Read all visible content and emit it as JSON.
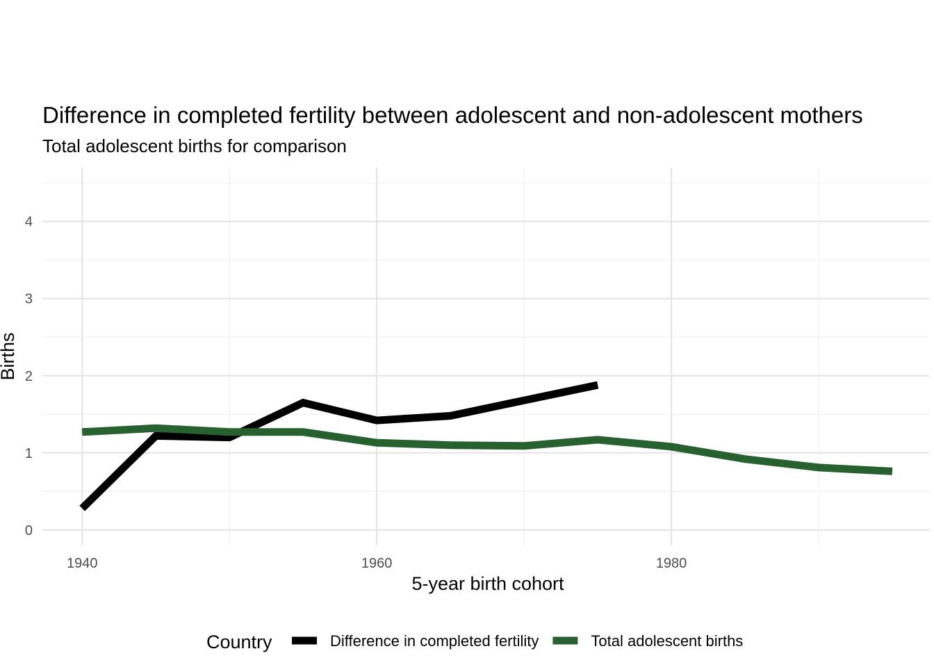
{
  "chart_data": {
    "type": "line",
    "title": "Difference in completed fertility between adolescent and non-adolescent mothers",
    "subtitle": "Total adolescent births for comparison",
    "xlabel": "5-year birth cohort",
    "ylabel": "Births",
    "xlim": [
      1937.3,
      1997.5
    ],
    "ylim": [
      -0.2,
      4.7
    ],
    "x_ticks": [
      1940,
      1960,
      1980
    ],
    "x_tick_labels": [
      "1940",
      "1960",
      "1980"
    ],
    "y_ticks": [
      0,
      1,
      2,
      3,
      4
    ],
    "y_tick_labels": [
      "0",
      "1",
      "2",
      "3",
      "4"
    ],
    "grid": true,
    "legend": {
      "title": "Country",
      "position": "bottom"
    },
    "series": [
      {
        "name": "Difference in completed fertility",
        "color": "#000000",
        "x": [
          1940,
          1945,
          1950,
          1955,
          1960,
          1965,
          1970,
          1975
        ],
        "y": [
          0.28,
          1.22,
          1.2,
          1.65,
          1.42,
          1.48,
          1.68,
          1.88
        ]
      },
      {
        "name": "Total adolescent births",
        "color": "#27612f",
        "x": [
          1940,
          1945,
          1950,
          1955,
          1960,
          1965,
          1970,
          1975,
          1980,
          1985,
          1990,
          1995
        ],
        "y": [
          1.27,
          1.32,
          1.27,
          1.27,
          1.13,
          1.1,
          1.09,
          1.17,
          1.08,
          0.92,
          0.81,
          0.76
        ]
      }
    ]
  }
}
